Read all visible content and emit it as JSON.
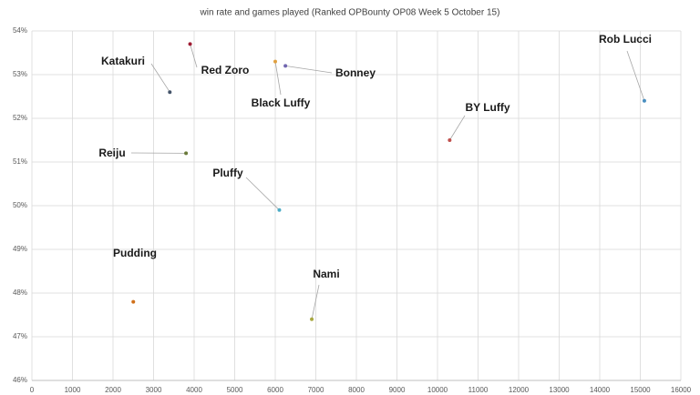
{
  "chart_data": {
    "type": "scatter",
    "title": "win rate and games played  (Ranked OPBounty OP08 Week 5 October 15)",
    "xlim": [
      0,
      16000
    ],
    "xticks": [
      0,
      1000,
      2000,
      3000,
      4000,
      5000,
      6000,
      7000,
      8000,
      9000,
      10000,
      11000,
      12000,
      13000,
      14000,
      15000,
      16000
    ],
    "ylim": [
      46,
      54
    ],
    "yticks": [
      {
        "value": 46,
        "label": "46%"
      },
      {
        "value": 47,
        "label": "47%"
      },
      {
        "value": 48,
        "label": "48%"
      },
      {
        "value": 49,
        "label": "49%"
      },
      {
        "value": 50,
        "label": "50%"
      },
      {
        "value": 51,
        "label": "51%"
      },
      {
        "value": 52,
        "label": "52%"
      },
      {
        "value": 53,
        "label": "53%"
      },
      {
        "value": 54,
        "label": "54%"
      }
    ],
    "grid": true,
    "series": [
      {
        "name": "Red Zoro",
        "color": "#9e1b32",
        "x": [
          3900
        ],
        "values": [
          53.7
        ]
      },
      {
        "name": "Katakuri",
        "color": "#44546a",
        "x": [
          3400
        ],
        "values": [
          52.6
        ]
      },
      {
        "name": "Black Luffy",
        "color": "#e0a040",
        "x": [
          6000
        ],
        "values": [
          53.3
        ]
      },
      {
        "name": "Bonney",
        "color": "#7066b0",
        "x": [
          6250
        ],
        "values": [
          53.2
        ]
      },
      {
        "name": "Rob Lucci",
        "color": "#4a8fc0",
        "x": [
          15100
        ],
        "values": [
          52.4
        ]
      },
      {
        "name": "BY Luffy",
        "color": "#c0504d",
        "x": [
          10300
        ],
        "values": [
          51.5
        ]
      },
      {
        "name": "Reiju",
        "color": "#6a7a3a",
        "x": [
          3800
        ],
        "values": [
          51.2
        ]
      },
      {
        "name": "Pluffy",
        "color": "#4bacc6",
        "x": [
          6100
        ],
        "values": [
          49.9
        ]
      },
      {
        "name": "Pudding",
        "color": "#d0701a",
        "x": [
          2500
        ],
        "values": [
          47.8
        ]
      },
      {
        "name": "Nami",
        "color": "#a8a840",
        "x": [
          6900
        ],
        "values": [
          47.4
        ]
      }
    ]
  }
}
